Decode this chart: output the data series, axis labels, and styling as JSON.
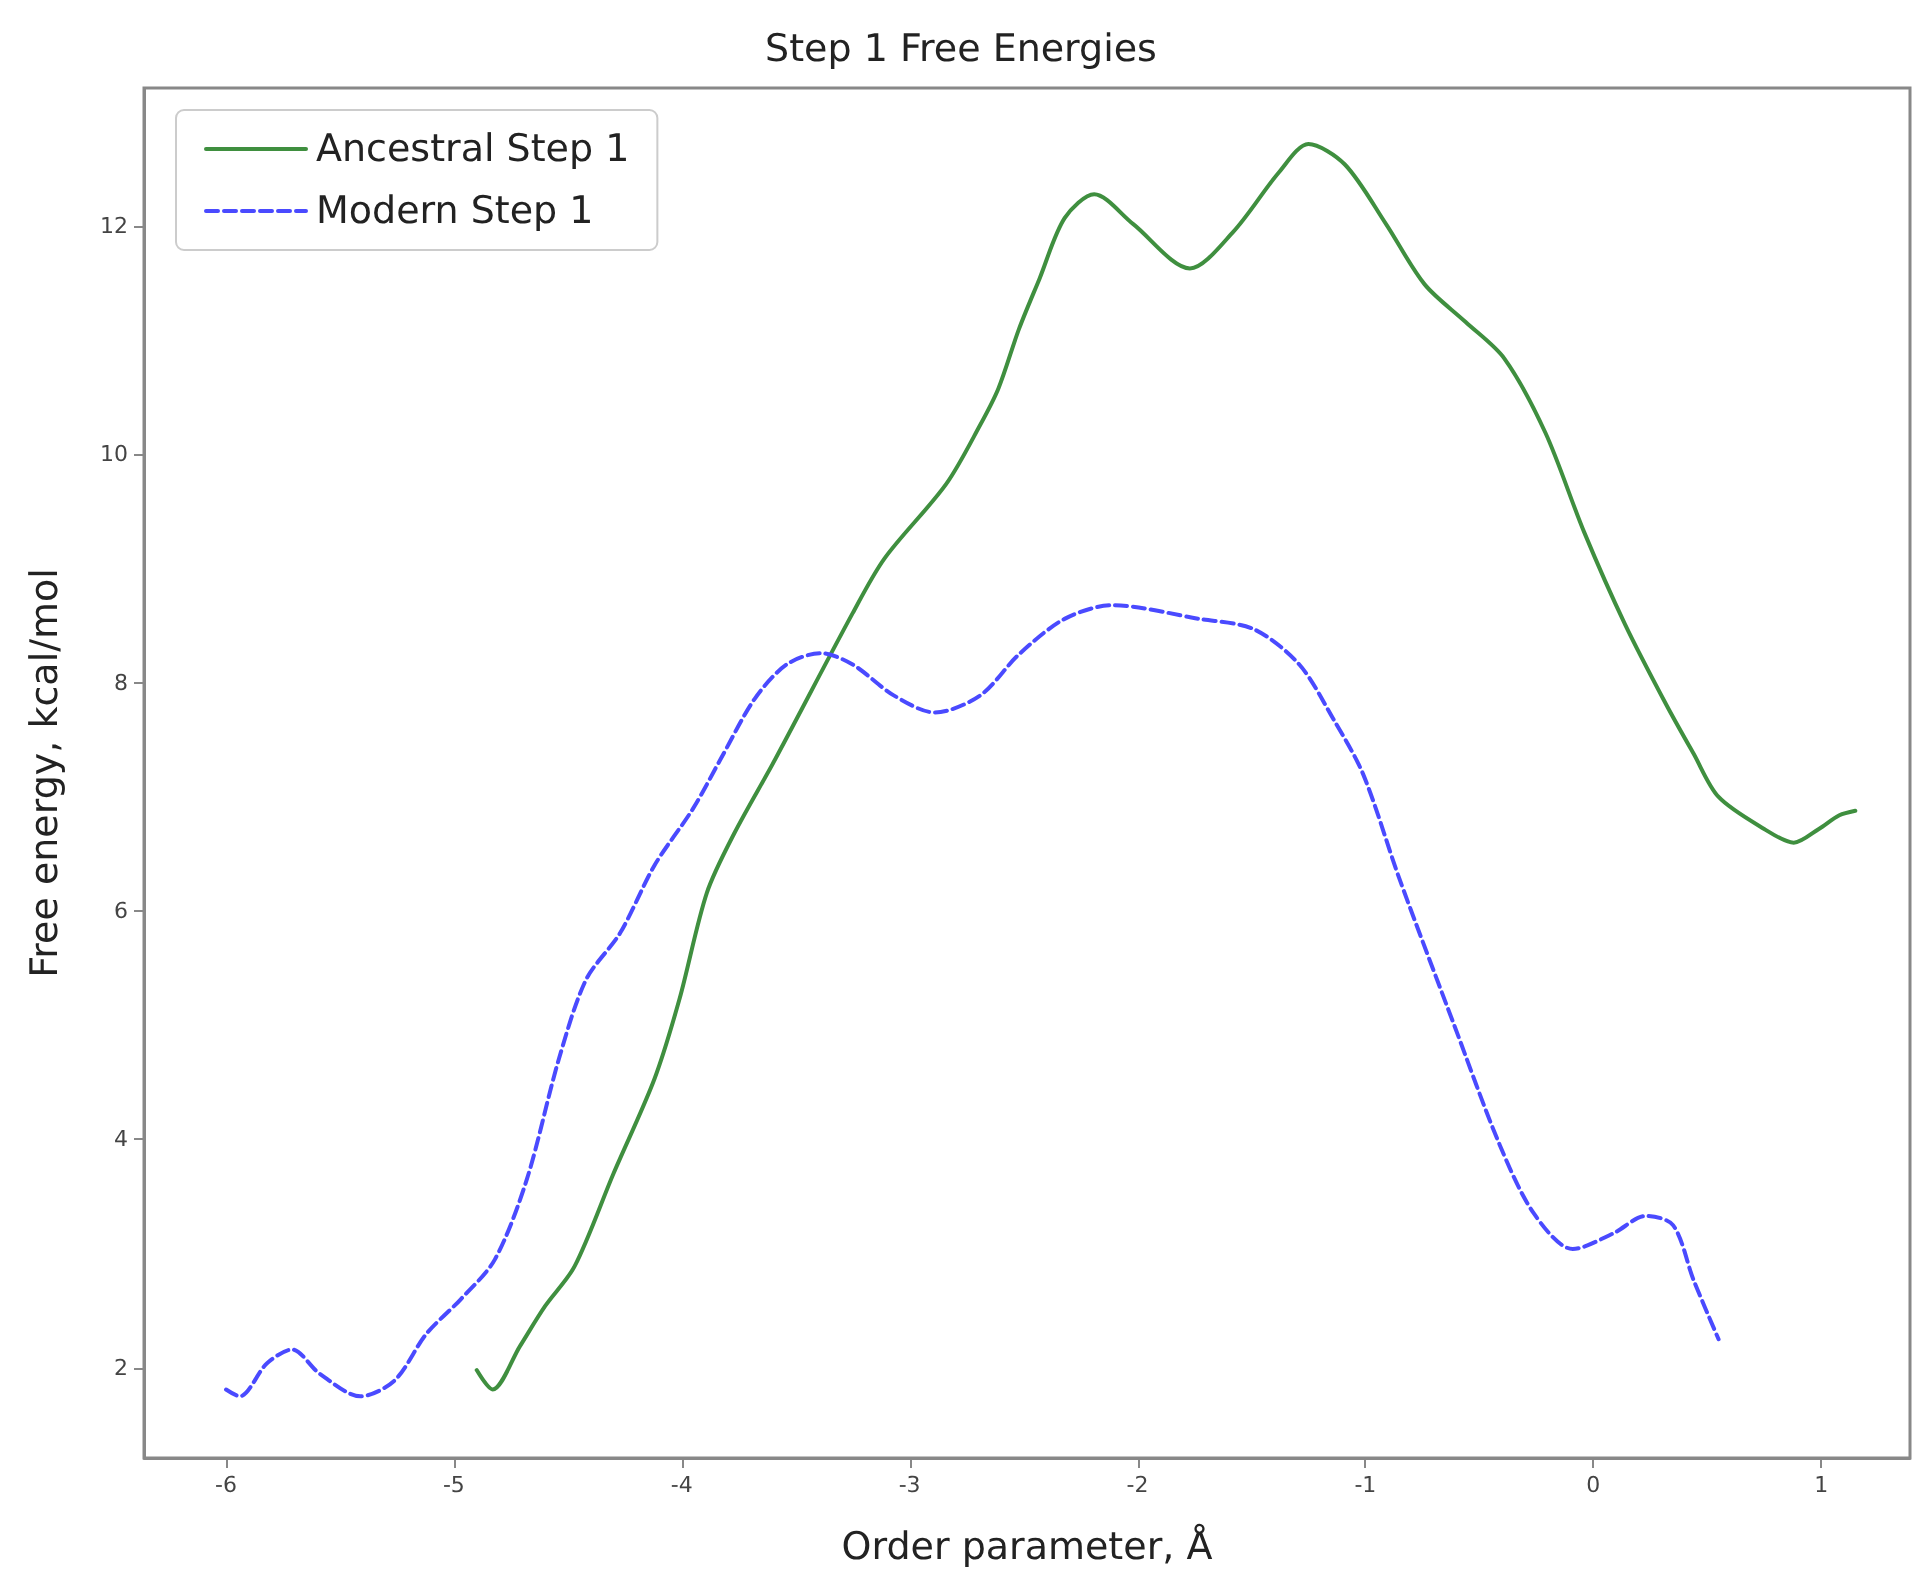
{
  "chart_data": {
    "type": "line",
    "title": "Step 1 Free Energies",
    "xlabel": "Order parameter, Å",
    "ylabel": "Free energy, kcal/mol",
    "xlim": [
      -6.36,
      1.39
    ],
    "xticks": [
      -6,
      -5,
      -4,
      -3,
      -2,
      -1,
      0,
      1
    ],
    "ylim": [
      1.21,
      13.21
    ],
    "yticks": [
      2,
      4,
      6,
      8,
      10,
      12
    ],
    "grid": false,
    "legend": "top left",
    "marker": "none",
    "series": [
      {
        "name": "Ancestral Step 1",
        "color": "#3f8f3f",
        "line_style": "solid",
        "x": [
          -4.9,
          -4.83,
          -4.71,
          -4.6,
          -4.47,
          -4.3,
          -4.12,
          -4.01,
          -3.89,
          -3.77,
          -3.59,
          -3.25,
          -3.11,
          -2.84,
          -2.69,
          -2.61,
          -2.52,
          -2.43,
          -2.32,
          -2.19,
          -2.02,
          -1.77,
          -1.58,
          -1.38,
          -1.25,
          -1.09,
          -0.91,
          -0.74,
          -0.56,
          -0.39,
          -0.21,
          -0.04,
          0.14,
          0.32,
          0.44,
          0.55,
          0.75,
          0.88,
          0.99,
          1.08,
          1.15
        ],
        "values": [
          1.98,
          1.81,
          2.19,
          2.54,
          2.89,
          3.7,
          4.53,
          5.23,
          6.16,
          6.68,
          7.33,
          8.61,
          9.09,
          9.74,
          10.26,
          10.58,
          11.1,
          11.54,
          12.07,
          12.28,
          12.02,
          11.63,
          11.95,
          12.47,
          12.72,
          12.54,
          12.02,
          11.49,
          11.16,
          10.84,
          10.19,
          9.32,
          8.51,
          7.81,
          7.38,
          7.0,
          6.72,
          6.6,
          6.72,
          6.84,
          6.88
        ]
      },
      {
        "name": "Modern Step 1",
        "color": "#4a4aff",
        "line_style": "dashed",
        "x": [
          -6.0,
          -5.94,
          -5.82,
          -5.71,
          -5.59,
          -5.41,
          -5.26,
          -5.12,
          -4.97,
          -4.82,
          -4.68,
          -4.54,
          -4.42,
          -4.27,
          -4.12,
          -3.95,
          -3.83,
          -3.68,
          -3.54,
          -3.39,
          -3.25,
          -3.07,
          -2.89,
          -2.69,
          -2.52,
          -2.32,
          -2.11,
          -1.73,
          -1.49,
          -1.29,
          -1.14,
          -1.01,
          -0.85,
          -0.61,
          -0.41,
          -0.26,
          -0.09,
          0.09,
          0.23,
          0.35,
          0.44,
          0.55
        ],
        "values": [
          1.81,
          1.75,
          2.04,
          2.16,
          1.95,
          1.75,
          1.89,
          2.3,
          2.6,
          2.95,
          3.65,
          4.7,
          5.4,
          5.81,
          6.4,
          6.9,
          7.33,
          7.86,
          8.16,
          8.26,
          8.16,
          7.89,
          7.74,
          7.89,
          8.25,
          8.56,
          8.68,
          8.56,
          8.47,
          8.16,
          7.68,
          7.2,
          6.28,
          5.0,
          3.95,
          3.35,
          3.04,
          3.18,
          3.33,
          3.25,
          2.77,
          2.25
        ]
      }
    ]
  }
}
